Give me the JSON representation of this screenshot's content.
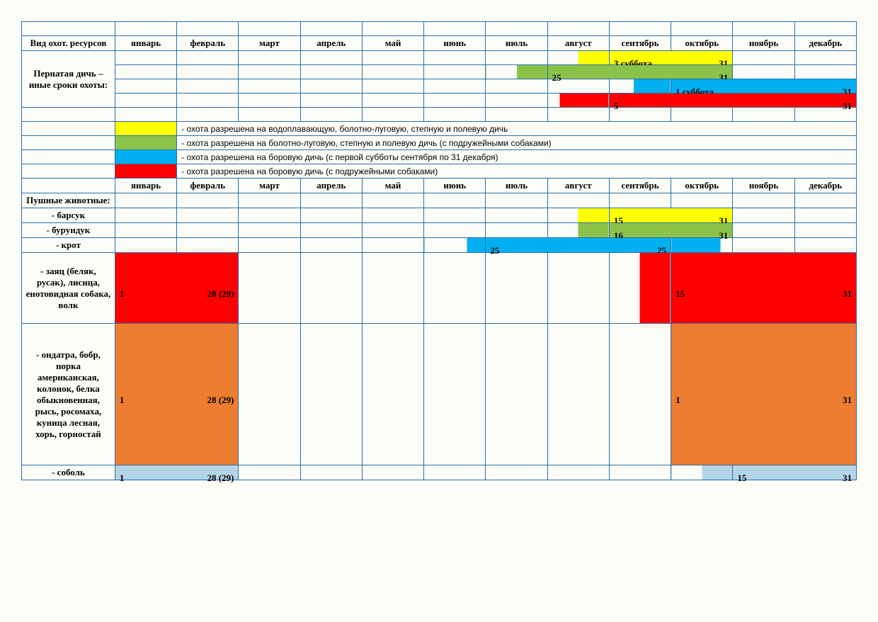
{
  "colors": {
    "yellow": "#ffff00",
    "green": "#8bc34a",
    "blue": "#00b0f0",
    "red": "#ff0000",
    "orange": "#ed7d31",
    "ltblue": "#b4d4e8",
    "border": "#2a6ea8",
    "bg": "#fdfdf8"
  },
  "months": [
    "январь",
    "февраль",
    "март",
    "апрель",
    "май",
    "июнь",
    "июль",
    "август",
    "сентябрь",
    "октябрь",
    "ноябрь",
    "декабрь"
  ],
  "header1": "Вид охот. ресурсов",
  "section1": {
    "title": "Пернатая дичь – иные сроки охоты:",
    "rows": [
      {
        "color": "yellow",
        "from_col": 8,
        "span": 3,
        "start": "3 суббота",
        "end": "31",
        "partial_start": 0.5
      },
      {
        "color": "green",
        "from_col": 7,
        "span": 4,
        "start": "25",
        "end": "31",
        "partial_start": 0.5
      },
      {
        "color": "blue",
        "from_col": 9,
        "span": 4,
        "start": "1 суббота",
        "end": "31",
        "partial_start": 0.4
      },
      {
        "color": "red",
        "from_col": 8,
        "span": 5,
        "start": "5",
        "end": "31",
        "partial_start": 0.2
      }
    ]
  },
  "legend": [
    {
      "color": "yellow",
      "text": "- охота разрешена на водоплавающую, болотно-луговую, степную и полевую дичь"
    },
    {
      "color": "green",
      "text": "- охота разрешена на болотно-луговую, степную и полевую дичь (с подружейными собаками)"
    },
    {
      "color": "blue",
      "text": "- охота разрешена на боровую дичь (с первой субботы сентября по 31 декабря)"
    },
    {
      "color": "red",
      "text": "- охота разрешена на боровую дичь (с подружейными собаками)"
    }
  ],
  "section2": {
    "title": "Пушные животные:",
    "rows": [
      {
        "label": "- барсук",
        "bars": [
          {
            "color": "yellow",
            "from_col": 8,
            "span": 3,
            "start": "15",
            "end": "31",
            "partial_start": 0.5
          }
        ]
      },
      {
        "label": "- бурундук",
        "bars": [
          {
            "color": "green",
            "from_col": 8,
            "span": 3,
            "start": "16",
            "end": "31",
            "partial_start": 0.5
          }
        ]
      },
      {
        "label": "- крот",
        "bars": [
          {
            "color": "blue",
            "from_col": 6,
            "span": 5,
            "start": "25",
            "end": "25",
            "partial_start": 0.7,
            "partial_end": 0.8
          }
        ]
      },
      {
        "label": "- заяц (беляк, русак), лисица, енотовидная собака, волк",
        "tall": true,
        "bars": [
          {
            "color": "red",
            "from_col": 1,
            "span": 2,
            "start": "1",
            "end": "28 (29)"
          },
          {
            "color": "red",
            "from_col": 9,
            "span": 4,
            "start": "15",
            "end": "31",
            "partial_start": 0.5
          }
        ]
      },
      {
        "label": "- ондатра, бобр, норка американская, колонок, белка обыкновенная, рысь, росомаха, куница лесная, хорь, горностай",
        "tall": true,
        "bars": [
          {
            "color": "orange",
            "from_col": 1,
            "span": 2,
            "start": "1",
            "end": "28 (29)"
          },
          {
            "color": "orange",
            "from_col": 10,
            "span": 3,
            "start": "1",
            "end": "31"
          }
        ]
      },
      {
        "label": "- соболь",
        "bars": [
          {
            "color": "ltblue",
            "from_col": 1,
            "span": 2,
            "start": "1",
            "end": "28 (29)"
          },
          {
            "color": "ltblue",
            "from_col": 10,
            "span": 3,
            "start": "15",
            "end": "31",
            "partial_start": 0.5
          }
        ]
      }
    ]
  }
}
